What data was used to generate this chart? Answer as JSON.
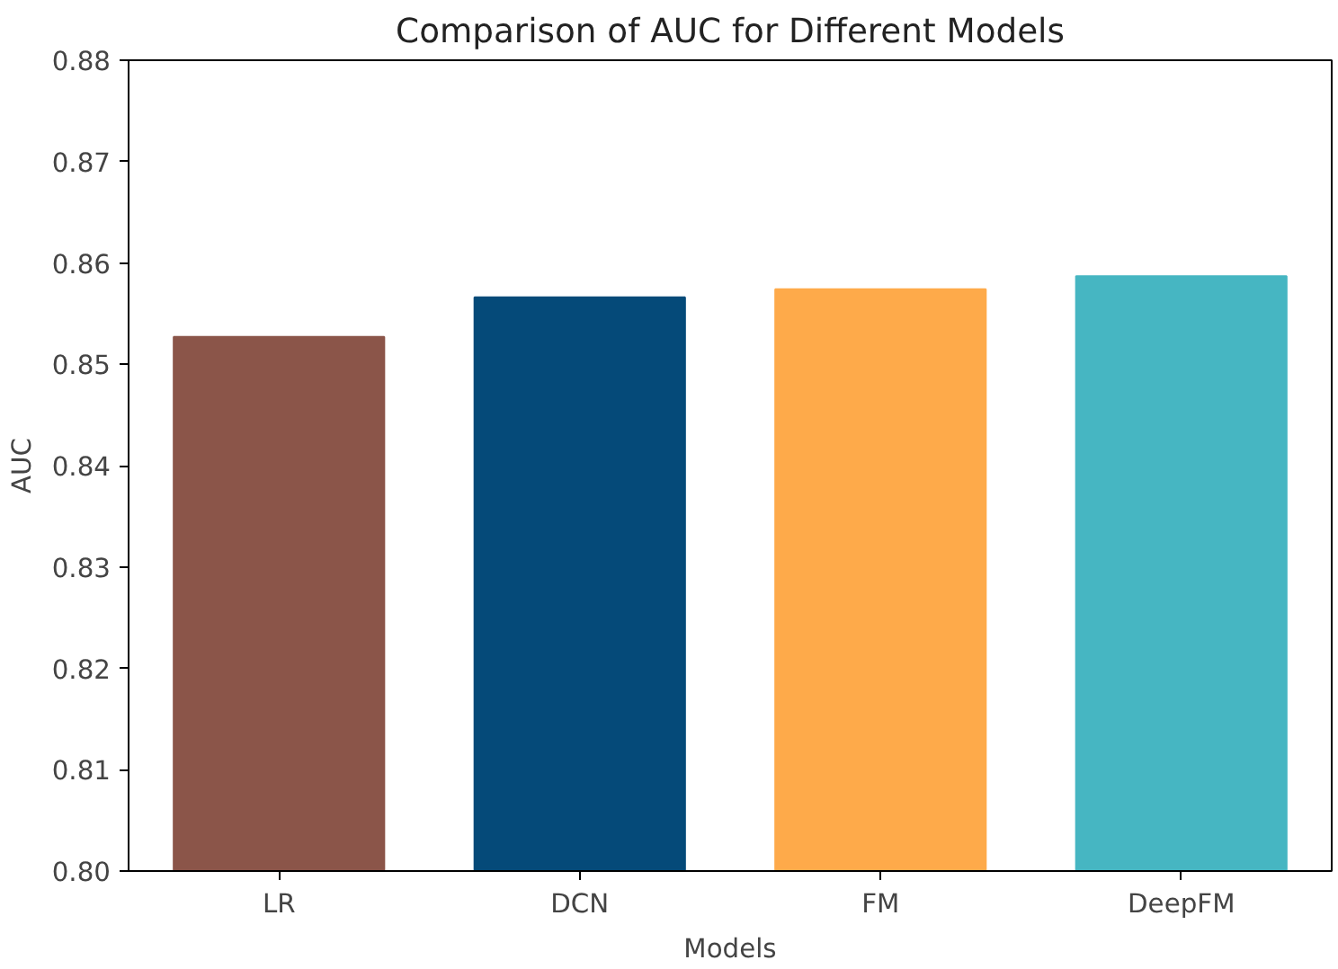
{
  "chart_data": {
    "type": "bar",
    "title": "Comparison of AUC for Different Models",
    "xlabel": "Models",
    "ylabel": "AUC",
    "categories": [
      "LR",
      "DCN",
      "FM",
      "DeepFM"
    ],
    "values": [
      0.8527,
      0.8566,
      0.8574,
      0.8587
    ],
    "colors": [
      "#8b5549",
      "#054a79",
      "#feaa4a",
      "#46b6c2"
    ],
    "ylim": [
      0.8,
      0.88
    ],
    "yticks": [
      {
        "value": 0.8,
        "label": "0.80"
      },
      0.81,
      0.82,
      0.83,
      0.84,
      0.85,
      0.86,
      0.87,
      0.88
    ],
    "grid": false
  }
}
